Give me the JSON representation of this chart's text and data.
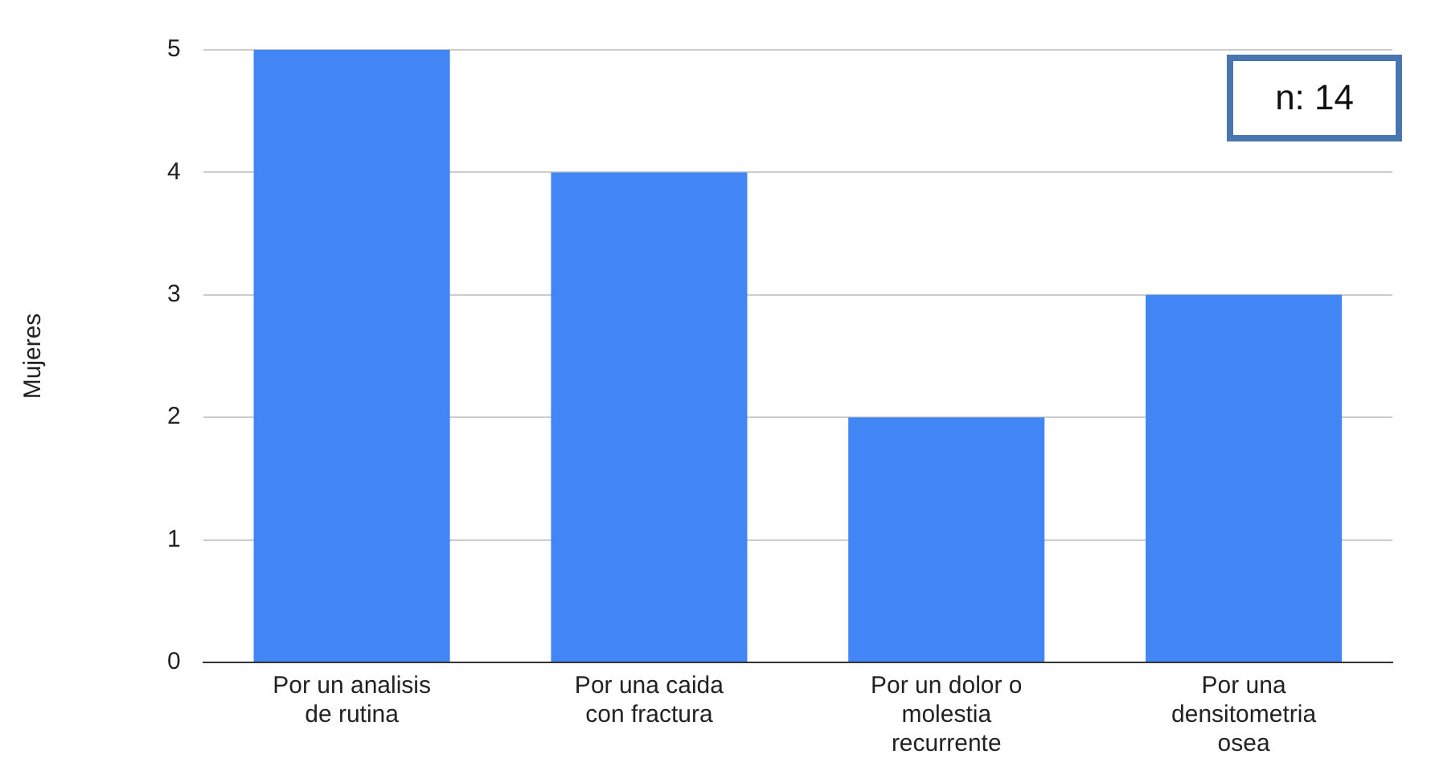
{
  "chart_data": {
    "type": "bar",
    "ylabel": "Mujeres",
    "categories": [
      "Por un analisis de rutina",
      "Por una caida con fractura",
      "Por un dolor o molestia recurrente",
      "Por una densitometria osea"
    ],
    "values": [
      5,
      4,
      2,
      3
    ],
    "color": "#4285f4",
    "ylim": [
      0,
      5
    ],
    "yticks": [
      0,
      1,
      2,
      3,
      4,
      5
    ],
    "grid": "y",
    "annotations": [
      "n: 14"
    ]
  }
}
